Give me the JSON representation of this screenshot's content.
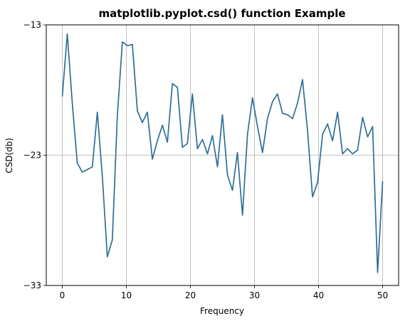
{
  "chart_data": {
    "type": "line",
    "title": "matplotlib.pyplot.csd() function Example",
    "xlabel": "Frequency",
    "ylabel": "CSD(db)",
    "xlim": [
      -2.5,
      52.5
    ],
    "ylim": [
      -33,
      -13
    ],
    "xticks": [
      0,
      10,
      20,
      30,
      40,
      50
    ],
    "xtick_labels": [
      "0",
      "10",
      "20",
      "30",
      "40",
      "50"
    ],
    "yticks": [
      -13,
      -23,
      -33
    ],
    "ytick_labels": [
      "−13",
      "−23",
      "−33"
    ],
    "grid": true,
    "line_color": "#2e6f96",
    "series": [
      {
        "x": [
          0,
          0.78,
          1.56,
          2.34,
          3.13,
          3.91,
          4.69,
          5.47,
          6.25,
          7.03,
          7.81,
          8.59,
          9.38,
          10.16,
          10.94,
          11.72,
          12.5,
          13.28,
          14.06,
          14.84,
          15.63,
          16.41,
          17.19,
          17.97,
          18.75,
          19.53,
          20.31,
          21.09,
          21.88,
          22.66,
          23.44,
          24.22,
          25,
          25.78,
          26.56,
          27.34,
          28.13,
          28.91,
          29.69,
          30.47,
          31.25,
          32.03,
          32.81,
          33.59,
          34.38,
          35.16,
          35.94,
          36.72,
          37.5,
          38.28,
          39.06,
          39.84,
          40.63,
          41.41,
          42.19,
          42.97,
          43.75,
          44.53,
          45.31,
          46.09,
          46.88,
          47.66,
          48.44,
          49.22,
          50
        ],
        "values": [
          -18.5,
          -13.7,
          -19.0,
          -23.6,
          -24.3,
          -24.1,
          -23.9,
          -19.7,
          -24.6,
          -30.8,
          -29.5,
          -20.0,
          -14.3,
          -14.6,
          -14.5,
          -19.6,
          -20.5,
          -19.7,
          -23.3,
          -21.9,
          -20.7,
          -22.0,
          -17.5,
          -17.8,
          -22.4,
          -22.1,
          -18.3,
          -22.5,
          -21.8,
          -22.9,
          -21.5,
          -23.9,
          -19.9,
          -24.5,
          -25.7,
          -22.8,
          -27.6,
          -21.4,
          -18.6,
          -20.8,
          -22.8,
          -20.2,
          -18.9,
          -18.3,
          -19.8,
          -19.9,
          -20.2,
          -19.0,
          -17.2,
          -21.1,
          -26.2,
          -25.1,
          -21.4,
          -20.6,
          -21.9,
          -19.7,
          -22.9,
          -22.5,
          -22.9,
          -22.6,
          -20.1,
          -21.6,
          -20.8,
          -32.0,
          -25.0
        ]
      }
    ]
  }
}
